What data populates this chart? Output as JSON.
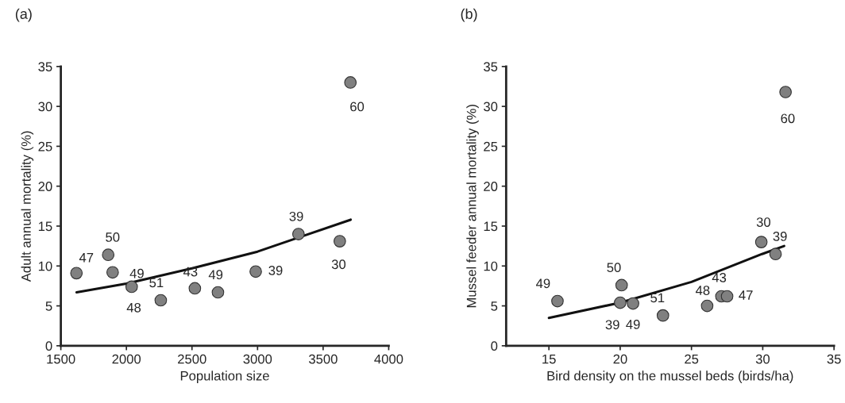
{
  "chart_data": [
    {
      "type": "scatter",
      "title": "(a)",
      "xlabel": "Population size",
      "ylabel": "Adult annual mortality (%)",
      "xlim": [
        1500,
        4000
      ],
      "xticks": [
        1500,
        2000,
        2500,
        3000,
        3500,
        4000
      ],
      "ylim": [
        0,
        35
      ],
      "yticks": [
        0,
        5,
        10,
        15,
        20,
        25,
        30,
        35
      ],
      "series": [
        {
          "color": "#808080",
          "marker": "circle",
          "x": [
            1619,
            1861,
            1895,
            2040,
            2262,
            2522,
            2698,
            2986,
            3312,
            3627,
            3708
          ],
          "values": [
            9.1,
            11.4,
            9.2,
            7.4,
            5.7,
            7.2,
            6.7,
            9.3,
            14.0,
            13.1,
            33.0
          ]
        },
        {
          "type": "line",
          "color": "#111111",
          "x": [
            1620,
            2000,
            2500,
            3000,
            3300,
            3710
          ],
          "values": [
            6.7,
            7.8,
            9.7,
            11.8,
            13.5,
            15.8
          ]
        }
      ],
      "annotations": [
        {
          "text": "47",
          "x": 1619,
          "y": 9.1
        },
        {
          "text": "50",
          "x": 1861,
          "y": 11.4
        },
        {
          "text": "49",
          "x": 1895,
          "y": 9.2
        },
        {
          "text": "48",
          "x": 2040,
          "y": 7.4
        },
        {
          "text": "51",
          "x": 2262,
          "y": 5.7
        },
        {
          "text": "43",
          "x": 2522,
          "y": 7.2
        },
        {
          "text": "49",
          "x": 2698,
          "y": 6.7
        },
        {
          "text": "39",
          "x": 2986,
          "y": 9.3
        },
        {
          "text": "39",
          "x": 3312,
          "y": 14.0
        },
        {
          "text": "30",
          "x": 3627,
          "y": 13.1
        },
        {
          "text": "60",
          "x": 3708,
          "y": 33.0
        }
      ]
    },
    {
      "type": "scatter",
      "title": "(b)",
      "xlabel": "Bird density on the mussel beds (birds/ha)",
      "ylabel": "Mussel feeder annual mortality (%)",
      "xlim": [
        12,
        35
      ],
      "xticks": [
        15,
        20,
        25,
        30,
        35
      ],
      "ylim": [
        0,
        35
      ],
      "yticks": [
        0,
        5,
        10,
        15,
        20,
        25,
        30,
        35
      ],
      "series": [
        {
          "color": "#808080",
          "marker": "circle",
          "x": [
            15.6,
            20.1,
            20.0,
            20.9,
            23.0,
            26.1,
            27.1,
            27.5,
            29.9,
            30.9,
            31.6
          ],
          "values": [
            5.6,
            7.6,
            5.4,
            5.3,
            3.8,
            5.0,
            6.2,
            6.2,
            13.0,
            11.5,
            31.8
          ]
        },
        {
          "type": "line",
          "color": "#111111",
          "x": [
            15,
            20,
            25,
            29.95,
            31.5
          ],
          "values": [
            3.5,
            5.4,
            8.0,
            11.5,
            12.5
          ]
        }
      ],
      "annotations": [
        {
          "text": "49",
          "x": 15.6,
          "y": 5.6
        },
        {
          "text": "50",
          "x": 20.1,
          "y": 7.6
        },
        {
          "text": "39",
          "x": 20.0,
          "y": 5.4
        },
        {
          "text": "49",
          "x": 20.9,
          "y": 5.3
        },
        {
          "text": "51",
          "x": 23.0,
          "y": 3.8
        },
        {
          "text": "48",
          "x": 26.1,
          "y": 5.0
        },
        {
          "text": "43",
          "x": 27.1,
          "y": 6.2
        },
        {
          "text": "47",
          "x": 27.5,
          "y": 6.2
        },
        {
          "text": "30",
          "x": 29.9,
          "y": 13.0
        },
        {
          "text": "39",
          "x": 30.9,
          "y": 11.5
        },
        {
          "text": "60",
          "x": 31.6,
          "y": 31.8
        }
      ]
    }
  ]
}
